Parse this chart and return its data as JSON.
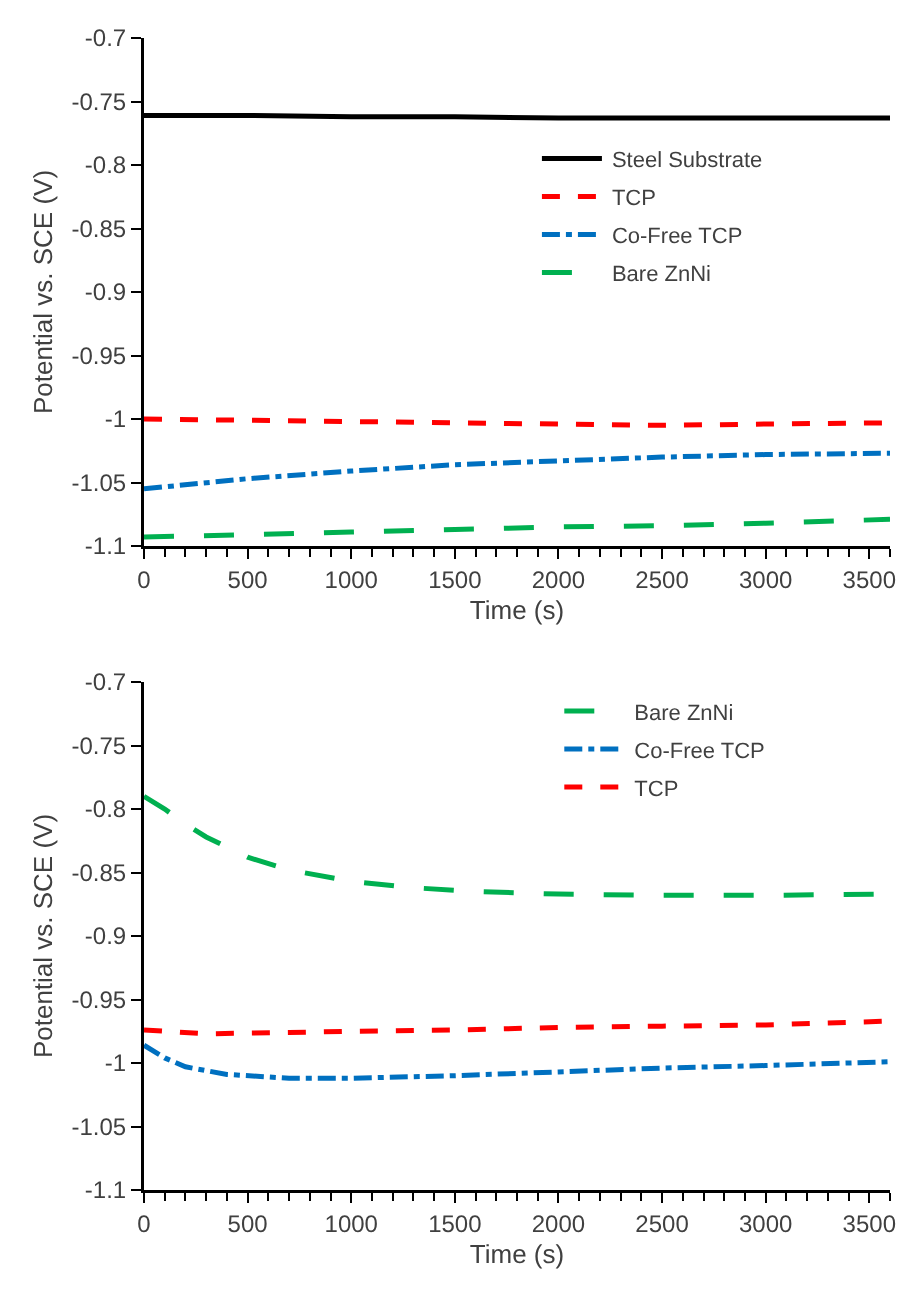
{
  "chart_data": [
    {
      "type": "line",
      "xlabel": "Time (s)",
      "ylabel": "Potential vs. SCE (V)",
      "xlim": [
        0,
        3600
      ],
      "xticks": [
        0,
        500,
        1000,
        1500,
        2000,
        2500,
        3000,
        3500
      ],
      "ylim": [
        -1.1,
        -0.7
      ],
      "yticks": [
        -1.1,
        -1.05,
        -1,
        -0.95,
        -0.9,
        -0.85,
        -0.8,
        -0.75,
        -0.7
      ],
      "grid": false,
      "legend": "right",
      "marker": "none",
      "x": [
        0,
        500,
        1000,
        1500,
        2000,
        2500,
        3000,
        3600
      ],
      "series": [
        {
          "name": "Steel Substrate",
          "color": "#000000",
          "line_style": "solid",
          "values": [
            -0.761,
            -0.761,
            -0.762,
            -0.762,
            -0.763,
            -0.763,
            -0.763,
            -0.763
          ]
        },
        {
          "name": "TCP",
          "color": "#ff0000",
          "line_style": "dashed",
          "values": [
            -1.0,
            -1.001,
            -1.002,
            -1.003,
            -1.004,
            -1.005,
            -1.004,
            -1.003
          ]
        },
        {
          "name": "Co-Free TCP",
          "color": "#0070c0",
          "line_style": "dashdot",
          "values": [
            -1.055,
            -1.047,
            -1.041,
            -1.036,
            -1.033,
            -1.03,
            -1.028,
            -1.027
          ]
        },
        {
          "name": "Bare ZnNi",
          "color": "#00b050",
          "line_style": "longdash",
          "values": [
            -1.093,
            -1.091,
            -1.089,
            -1.087,
            -1.085,
            -1.084,
            -1.082,
            -1.079
          ]
        }
      ]
    },
    {
      "type": "line",
      "xlabel": "Time (s)",
      "ylabel": "Potential vs. SCE (V)",
      "xlim": [
        0,
        3600
      ],
      "xticks": [
        0,
        500,
        1000,
        1500,
        2000,
        2500,
        3000,
        3500
      ],
      "ylim": [
        -1.1,
        -0.7
      ],
      "yticks": [
        -1.1,
        -1.05,
        -1,
        -0.95,
        -0.9,
        -0.85,
        -0.8,
        -0.75,
        -0.7
      ],
      "grid": false,
      "legend": "top right",
      "marker": "none",
      "series": [
        {
          "name": "Bare ZnNi",
          "color": "#00b050",
          "line_style": "longdash",
          "x": [
            0,
            100,
            200,
            300,
            400,
            500,
            700,
            1000,
            1300,
            1600,
            2000,
            2500,
            3000,
            3600
          ],
          "values": [
            -0.79,
            -0.8,
            -0.812,
            -0.822,
            -0.83,
            -0.838,
            -0.848,
            -0.857,
            -0.862,
            -0.865,
            -0.867,
            -0.868,
            -0.868,
            -0.867
          ]
        },
        {
          "name": "Co-Free TCP",
          "color": "#0070c0",
          "line_style": "dashdot",
          "x": [
            0,
            100,
            200,
            400,
            700,
            1000,
            1500,
            2000,
            2500,
            3000,
            3600
          ],
          "values": [
            -0.986,
            -0.996,
            -1.003,
            -1.009,
            -1.012,
            -1.012,
            -1.01,
            -1.007,
            -1.004,
            -1.002,
            -0.999
          ]
        },
        {
          "name": "TCP",
          "color": "#ff0000",
          "line_style": "dashed",
          "x": [
            0,
            300,
            700,
            1000,
            1500,
            2000,
            2500,
            3000,
            3600
          ],
          "values": [
            -0.974,
            -0.977,
            -0.976,
            -0.975,
            -0.974,
            -0.972,
            -0.971,
            -0.97,
            -0.967
          ]
        }
      ]
    }
  ]
}
